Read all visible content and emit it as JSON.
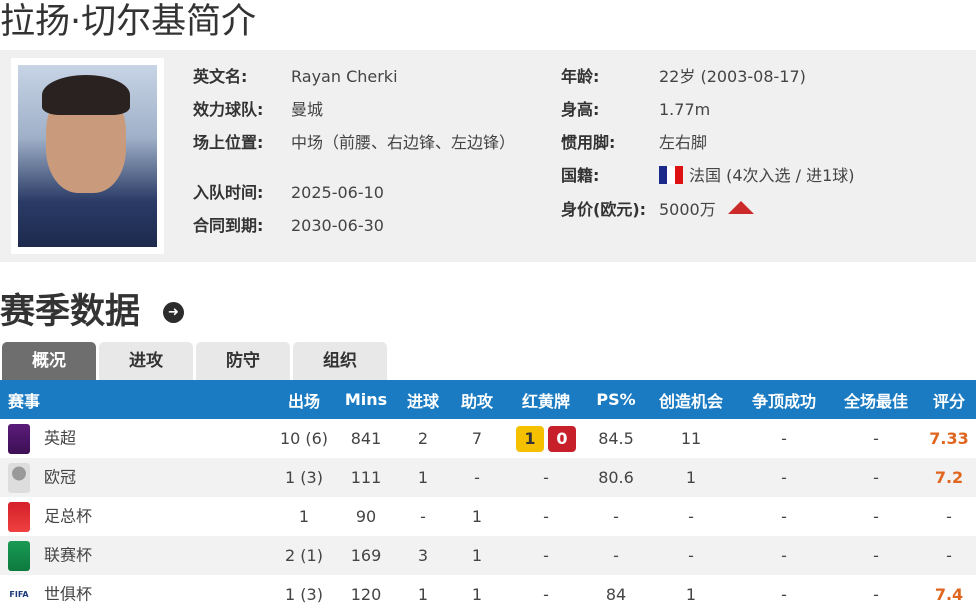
{
  "page_title": "拉扬·切尔基简介",
  "profile": {
    "left": [
      {
        "label": "英文名:",
        "value": "Rayan Cherki"
      },
      {
        "label": "效力球队:",
        "value": "曼城"
      },
      {
        "label": "场上位置:",
        "value": "中场（前腰、右边锋、左边锋）"
      },
      {
        "label": "入队时间:",
        "value": "2025-06-10"
      },
      {
        "label": "合同到期:",
        "value": "2030-06-30"
      }
    ],
    "right": [
      {
        "label": "年龄:",
        "value": "22岁  (2003-08-17)"
      },
      {
        "label": "身高:",
        "value": "1.77m"
      },
      {
        "label": "惯用脚:",
        "value": "左右脚"
      },
      {
        "label": "国籍:",
        "value": "法国 (4次入选 / 进1球)"
      },
      {
        "label": "身价(欧元):",
        "value": "5000万"
      }
    ],
    "value_trend": "up",
    "trend_color": "#cc2a2a"
  },
  "season": {
    "title": "赛季数据",
    "tabs": [
      "概况",
      "进攻",
      "防守",
      "组织"
    ],
    "active_tab": "概况",
    "headers": [
      "赛事",
      "出场",
      "Mins",
      "进球",
      "助攻",
      "红黄牌",
      "PS%",
      "创造机会",
      "争顶成功",
      "全场最佳",
      "评分"
    ],
    "rows": [
      {
        "comp": "英超",
        "apps": "10 (6)",
        "mins": "841",
        "goals": "2",
        "assists": "7",
        "yellow": "1",
        "red": "0",
        "ps": "84.5",
        "chances": "11",
        "aerials": "-",
        "motm": "-",
        "rating": "7.33"
      },
      {
        "comp": "欧冠",
        "apps": "1 (3)",
        "mins": "111",
        "goals": "1",
        "assists": "-",
        "cards": "-",
        "ps": "80.6",
        "chances": "1",
        "aerials": "-",
        "motm": "-",
        "rating": "7.2"
      },
      {
        "comp": "足总杯",
        "apps": "1",
        "mins": "90",
        "goals": "-",
        "assists": "1",
        "cards": "-",
        "ps": "-",
        "chances": "-",
        "aerials": "-",
        "motm": "-",
        "rating": "-"
      },
      {
        "comp": "联赛杯",
        "apps": "2 (1)",
        "mins": "169",
        "goals": "3",
        "assists": "1",
        "cards": "-",
        "ps": "-",
        "chances": "-",
        "aerials": "-",
        "motm": "-",
        "rating": "-"
      },
      {
        "comp": "世俱杯",
        "apps": "1 (3)",
        "mins": "120",
        "goals": "1",
        "assists": "1",
        "cards": "-",
        "ps": "84",
        "chances": "1",
        "aerials": "-",
        "motm": "-",
        "rating": "7.4"
      }
    ],
    "header_color": "#1a7bc2",
    "rating_color": "#e0661f",
    "yellow_card_color": "#f5c000",
    "red_card_color": "#c8202a"
  }
}
